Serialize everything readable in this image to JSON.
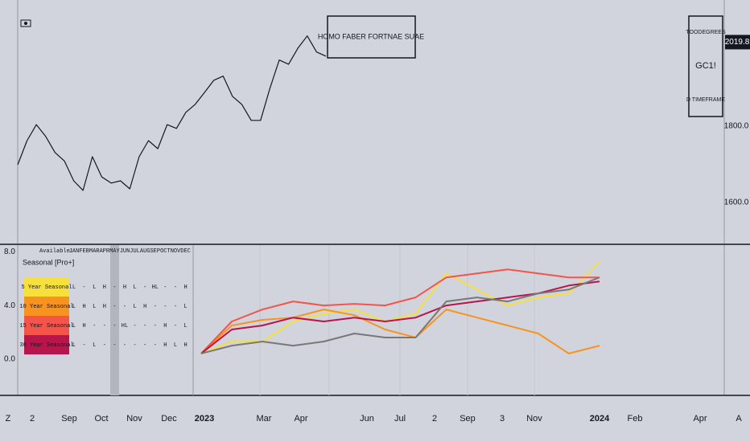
{
  "banner": "HOMO FABER FORTNAE SUAE",
  "info_box": {
    "lines": [
      "TOODEGREES",
      "GC1!",
      "D TIMEFRAME"
    ]
  },
  "chart_data": [
    {
      "type": "line",
      "color": "#131722",
      "values": [
        1699,
        1762,
        1804,
        1773,
        1731,
        1709,
        1657,
        1632,
        1720,
        1667,
        1651,
        1657,
        1636,
        1720,
        1762,
        1741,
        1804,
        1794,
        1836,
        1857,
        1888,
        1920,
        1931,
        1878,
        1857,
        1815,
        1815,
        1899,
        1973,
        1962,
        2004,
        2036,
        1994,
        1983
      ],
      "ylim": [
        1493,
        2130
      ],
      "yticks": [
        {
          "value": 1600,
          "label": "1600.0"
        },
        {
          "value": 1800,
          "label": "1800.0"
        }
      ],
      "last_price": 2019.8
    },
    {
      "type": "line",
      "series": [
        {
          "name": "5 Year Seasonal",
          "color": "#f7e03a",
          "values": [
            0.42,
            1.31,
            1.31,
            2.81,
            3.4,
            3.7,
            2.81,
            3.4,
            6.39,
            5.19,
            4.0,
            4.6,
            4.9,
            7.28
          ]
        },
        {
          "name": "10 Year Seasonal",
          "color": "#f7931e",
          "values": [
            0.42,
            2.51,
            2.93,
            3.1,
            3.7,
            3.28,
            2.21,
            1.61,
            3.7,
            3.1,
            2.51,
            1.91,
            0.42,
            1.01
          ]
        },
        {
          "name": "15 Year Seasonal",
          "color": "#f4544a",
          "values": [
            0.42,
            2.81,
            3.7,
            4.3,
            4.0,
            4.12,
            4.0,
            4.6,
            6.09,
            6.39,
            6.69,
            6.39,
            6.09,
            6.09
          ]
        },
        {
          "name": "30 Year Seasonal",
          "color": "#b8154d",
          "values": [
            0.42,
            2.21,
            2.51,
            3.1,
            2.81,
            3.1,
            2.81,
            3.1,
            4.0,
            4.3,
            4.6,
            4.9,
            5.49,
            5.79
          ]
        },
        {
          "color": "#787878",
          "values": [
            0.42,
            1.01,
            1.31,
            1.01,
            1.31,
            1.91,
            1.61,
            1.61,
            4.3,
            4.6,
            4.3,
            4.9,
            5.19,
            6.09
          ]
        }
      ],
      "ylim": [
        -2.7,
        8.5
      ],
      "yticks": [
        {
          "value": 0,
          "label": "0.0"
        },
        {
          "value": 4,
          "label": "4.0"
        },
        {
          "value": 8,
          "label": "8.0"
        }
      ]
    }
  ],
  "seasonal_table": {
    "title": "Seasonal [Pro+]",
    "header": [
      "Available:",
      "JAN",
      "FEB",
      "MAR",
      "APR",
      "MAY",
      "JUN",
      "JUL",
      "AUG",
      "SEP",
      "OCT",
      "NOV",
      "DEC"
    ],
    "rows": [
      [
        "L",
        "-",
        "L",
        "H",
        "-",
        "H",
        "L",
        "-",
        "HL",
        "-",
        "-",
        "H"
      ],
      [
        "L",
        "H",
        "L",
        "H",
        "-",
        "-",
        "L",
        "H",
        "-",
        "-",
        "-",
        "L"
      ],
      [
        "L",
        "H",
        "-",
        "-",
        "-",
        "HL",
        "-",
        "-",
        "-",
        "H",
        "-",
        "L"
      ],
      [
        "L",
        "-",
        "L",
        "-",
        "-",
        "-",
        "-",
        "-",
        "-",
        "H",
        "L",
        "H"
      ]
    ]
  },
  "x_axis_labels": [
    "Z",
    "2",
    "Sep",
    "Oct",
    "Nov",
    "Dec",
    "2023",
    "Mar",
    "Apr",
    "Jun",
    "Jul",
    "2",
    "Sep",
    "3",
    "Nov",
    "2024",
    "Feb",
    "Apr",
    "A"
  ]
}
